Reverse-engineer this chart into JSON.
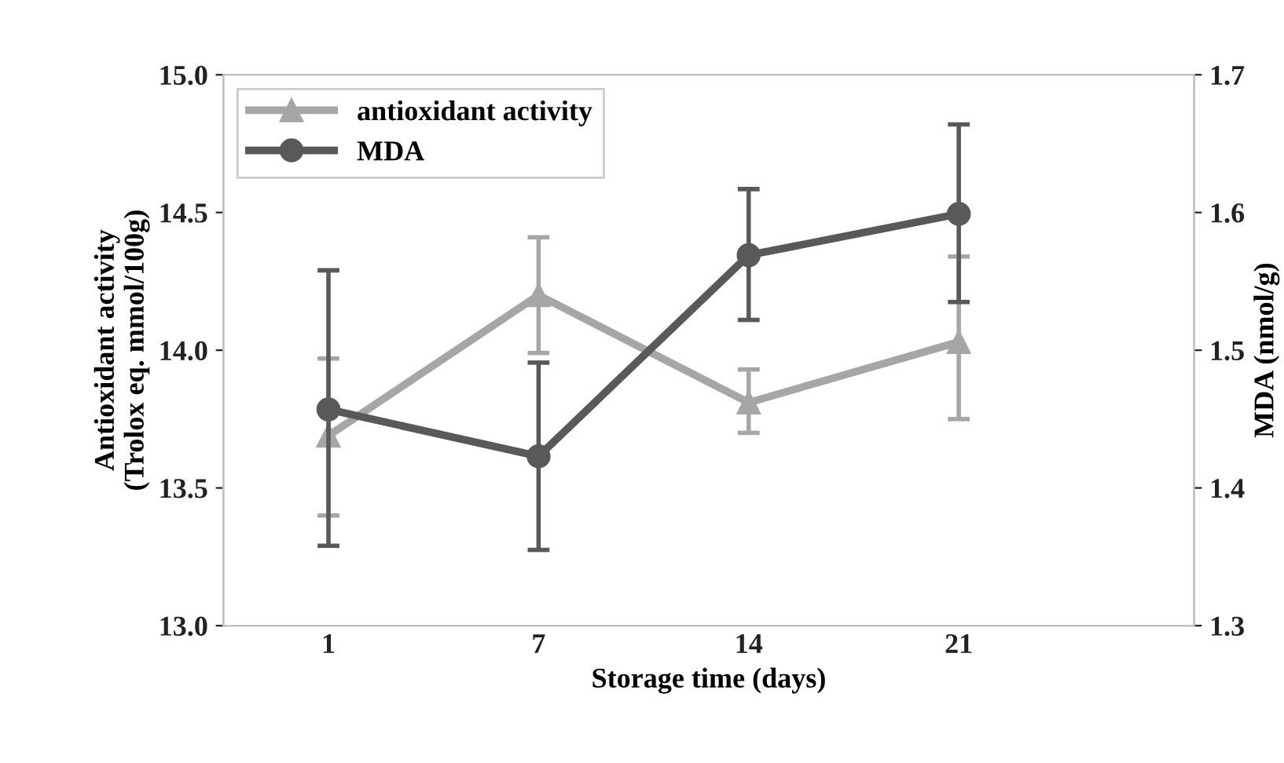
{
  "chart_data": {
    "type": "line",
    "xlabel": "Storage time (days)",
    "ylabel": "Antioxidant activity\n(Trolox eq. mmol/100g)",
    "y2label": "MDA (nmol/g)",
    "categories": [
      "1",
      "7",
      "14",
      "21"
    ],
    "series": [
      {
        "name": "antioxidant activity",
        "color": "#a6a6a6",
        "marker": "triangle",
        "values": [
          13.69,
          14.2,
          13.81,
          14.03
        ],
        "errors": [
          [
            13.4,
            13.97
          ],
          [
            13.99,
            14.41
          ],
          [
            13.7,
            13.93
          ],
          [
            13.75,
            14.34
          ]
        ]
      },
      {
        "name": "MDA",
        "color": "#595959",
        "marker": "circle",
        "axis": "y2",
        "values": [
          1.457,
          1.423,
          1.569,
          1.599
        ],
        "errors": [
          [
            1.358,
            1.558
          ],
          [
            1.355,
            1.491
          ],
          [
            1.522,
            1.617
          ],
          [
            1.535,
            1.664
          ]
        ]
      }
    ],
    "ylim": [
      13.0,
      15.0
    ],
    "yticks": [
      {
        "value": 13.0,
        "label": "13.0"
      },
      {
        "value": 13.5,
        "label": "13.5"
      },
      {
        "value": 14.0,
        "label": "14.0"
      },
      {
        "value": 14.5,
        "label": "14.5"
      },
      {
        "value": 15.0,
        "label": "15.0"
      }
    ],
    "y2lim": [
      1.3,
      1.7
    ],
    "y2ticks": [
      {
        "value": 1.3,
        "label": "1.3"
      },
      {
        "value": 1.4,
        "label": "1.4"
      },
      {
        "value": 1.5,
        "label": "1.5"
      },
      {
        "value": 1.6,
        "label": "1.6"
      },
      {
        "value": 1.7,
        "label": "1.7"
      }
    ],
    "grid": false,
    "legend": "top left",
    "line_style": "solid"
  }
}
